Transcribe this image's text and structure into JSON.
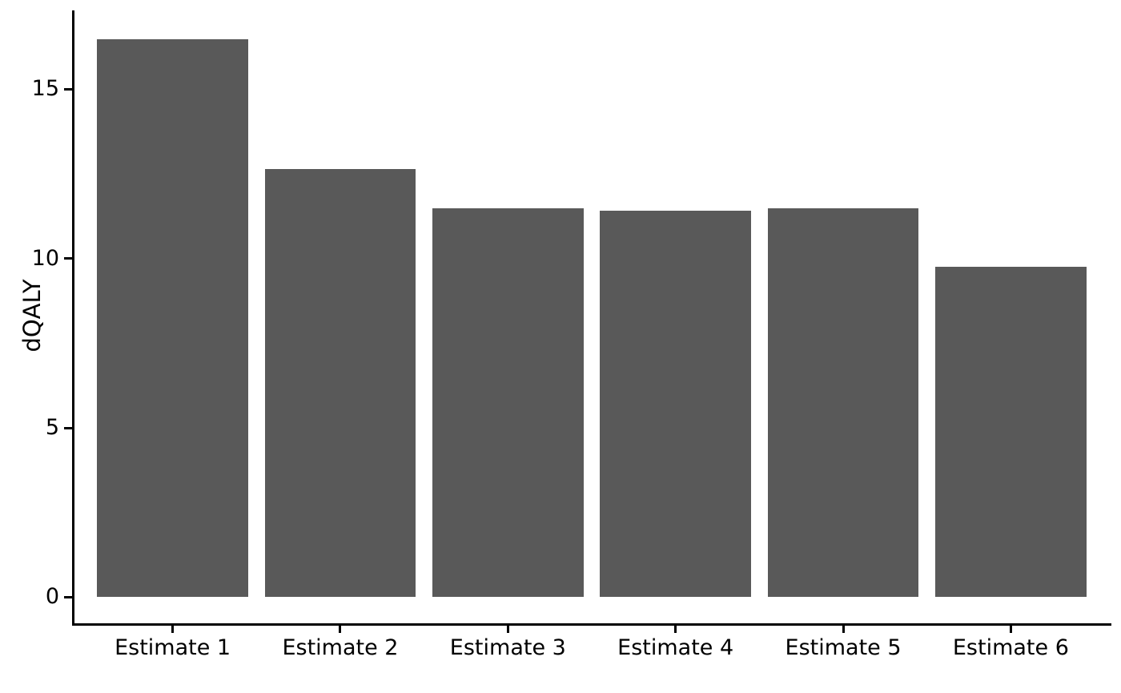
{
  "chart_data": {
    "type": "bar",
    "title": "",
    "xlabel": "",
    "ylabel": "dQALY",
    "categories": [
      "Estimate 1",
      "Estimate 2",
      "Estimate 3",
      "Estimate 4",
      "Estimate 5",
      "Estimate 6"
    ],
    "values": [
      16.46,
      12.63,
      11.47,
      11.4,
      11.47,
      9.75
    ],
    "yticks": [
      "0",
      "5",
      "10",
      "15"
    ],
    "ytick_values": [
      0,
      5,
      10,
      15
    ],
    "ylim": [
      -0.84,
      17.32
    ],
    "grid": false,
    "legend_position": "none",
    "bar_width_fraction": 0.9,
    "category_edge_expand": 0.6,
    "colors": {
      "bar_fill": "#595959",
      "axis_line": "#000000",
      "text": "#000000",
      "background": "#ffffff"
    }
  }
}
